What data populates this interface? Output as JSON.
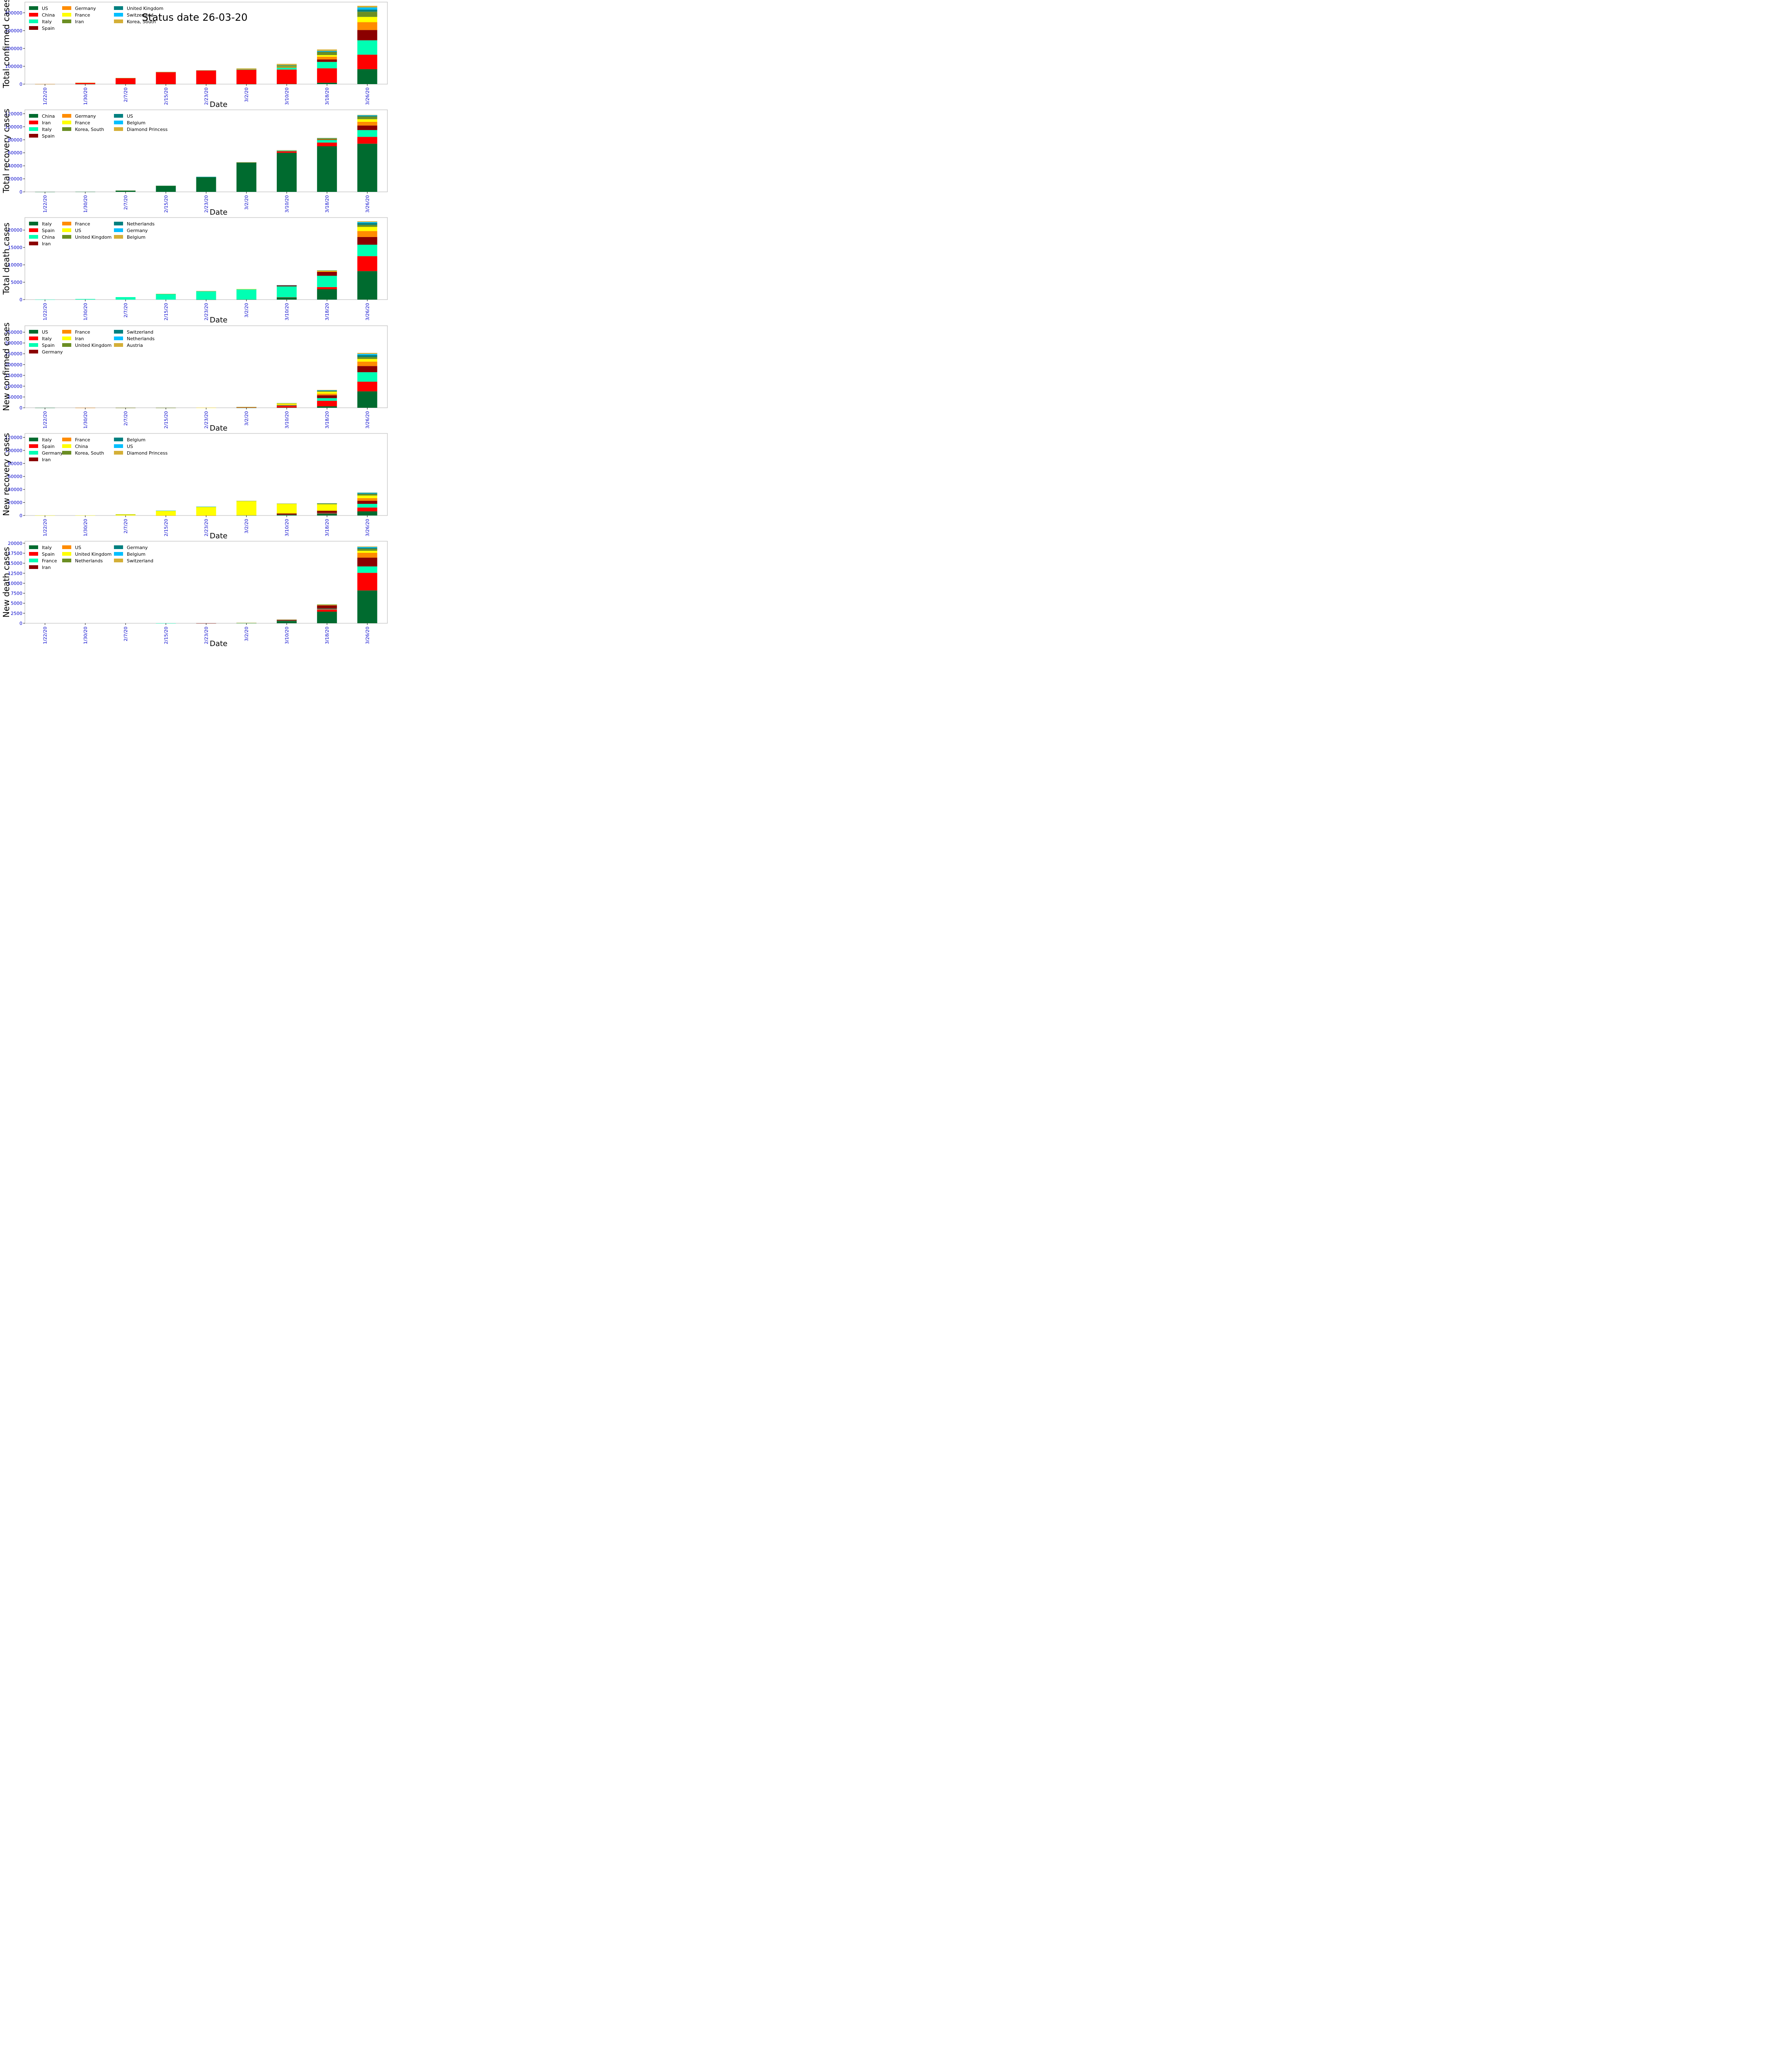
{
  "status_text": "Status date  26-03-20",
  "x_label": "Date",
  "colors": [
    "#006b2f",
    "#ff0000",
    "#00ffb3",
    "#8b0000",
    "#ff8c00",
    "#ffff00",
    "#6b8e23",
    "#008080",
    "#00bfff",
    "#d4af37"
  ],
  "chart_data": [
    {
      "type": "bar",
      "stacked": true,
      "ylabel": "Total confirmed cases",
      "ylim": [
        0,
        460000
      ],
      "yticks": [
        0,
        100000,
        200000,
        300000,
        400000
      ],
      "categories": [
        "1/22/20",
        "1/30/20",
        "2/7/20",
        "2/15/20",
        "2/23/20",
        "3/2/20",
        "3/10/20",
        "3/18/20",
        "3/26/20"
      ],
      "series": [
        {
          "name": "US",
          "values": [
            1,
            6,
            12,
            15,
            15,
            100,
            960,
            7800,
            83800
          ]
        },
        {
          "name": "China",
          "values": [
            550,
            8000,
            34000,
            68000,
            77000,
            80000,
            80800,
            81100,
            81300
          ]
        },
        {
          "name": "Italy",
          "values": [
            0,
            0,
            3,
            3,
            155,
            2000,
            10100,
            35700,
            80500
          ]
        },
        {
          "name": "Spain",
          "values": [
            0,
            0,
            1,
            2,
            2,
            120,
            1700,
            13900,
            57800
          ]
        },
        {
          "name": "Germany",
          "values": [
            0,
            4,
            13,
            16,
            16,
            159,
            1900,
            15300,
            43900
          ]
        },
        {
          "name": "France",
          "values": [
            0,
            5,
            6,
            12,
            12,
            190,
            1800,
            9000,
            29500
          ]
        },
        {
          "name": "Iran",
          "values": [
            0,
            0,
            0,
            0,
            43,
            1500,
            8000,
            17300,
            29400
          ]
        },
        {
          "name": "United Kingdom",
          "values": [
            0,
            0,
            3,
            9,
            9,
            40,
            380,
            2700,
            11800
          ]
        },
        {
          "name": "Switzerland",
          "values": [
            0,
            0,
            0,
            0,
            0,
            42,
            490,
            3100,
            11800
          ]
        },
        {
          "name": "Korea, South",
          "values": [
            1,
            4,
            24,
            28,
            600,
            4300,
            7500,
            8400,
            9200
          ]
        }
      ]
    },
    {
      "type": "bar",
      "stacked": true,
      "ylabel": "Total recovery cases",
      "ylim": [
        0,
        126000
      ],
      "yticks": [
        0,
        20000,
        40000,
        60000,
        80000,
        100000,
        120000
      ],
      "categories": [
        "1/22/20",
        "1/30/20",
        "2/7/20",
        "2/15/20",
        "2/23/20",
        "3/2/20",
        "3/10/20",
        "3/18/20",
        "3/26/20"
      ],
      "series": [
        {
          "name": "China",
          "values": [
            28,
            170,
            2000,
            9400,
            23000,
            45000,
            60000,
            70000,
            74000
          ]
        },
        {
          "name": "Iran",
          "values": [
            0,
            0,
            0,
            0,
            0,
            290,
            2400,
            5700,
            10500
          ]
        },
        {
          "name": "Italy",
          "values": [
            0,
            0,
            0,
            0,
            1,
            160,
            1000,
            4000,
            10400
          ]
        },
        {
          "name": "Spain",
          "values": [
            0,
            0,
            0,
            0,
            2,
            2,
            180,
            1100,
            7000
          ]
        },
        {
          "name": "Germany",
          "values": [
            0,
            0,
            0,
            1,
            14,
            16,
            25,
            110,
            5700
          ]
        },
        {
          "name": "France",
          "values": [
            0,
            0,
            0,
            2,
            4,
            12,
            12,
            12,
            4000
          ]
        },
        {
          "name": "Korea, South",
          "values": [
            0,
            0,
            1,
            10,
            18,
            30,
            250,
            1500,
            4100
          ]
        },
        {
          "name": "US",
          "values": [
            0,
            0,
            0,
            3,
            5,
            7,
            8,
            100,
            1100
          ]
        },
        {
          "name": "Belgium",
          "values": [
            0,
            0,
            0,
            0,
            1,
            1,
            1,
            31,
            860
          ]
        },
        {
          "name": "Diamond Princess",
          "values": [
            0,
            0,
            0,
            0,
            0,
            10,
            40,
            325,
            600
          ]
        }
      ]
    },
    {
      "type": "bar",
      "stacked": true,
      "ylabel": "Total death cases",
      "ylim": [
        0,
        23600
      ],
      "yticks": [
        0,
        5000,
        10000,
        15000,
        20000
      ],
      "categories": [
        "1/22/20",
        "1/30/20",
        "2/7/20",
        "2/15/20",
        "2/23/20",
        "3/2/20",
        "3/10/20",
        "3/18/20",
        "3/26/20"
      ],
      "series": [
        {
          "name": "Italy",
          "values": [
            0,
            0,
            0,
            0,
            3,
            52,
            630,
            2980,
            8200
          ]
        },
        {
          "name": "Spain",
          "values": [
            0,
            0,
            0,
            0,
            0,
            0,
            35,
            620,
            4300
          ]
        },
        {
          "name": "China",
          "values": [
            17,
            170,
            720,
            1660,
            2440,
            2910,
            3140,
            3250,
            3290
          ]
        },
        {
          "name": "Iran",
          "values": [
            0,
            0,
            0,
            0,
            8,
            66,
            290,
            1130,
            2230
          ]
        },
        {
          "name": "France",
          "values": [
            0,
            0,
            0,
            1,
            1,
            3,
            33,
            175,
            1700
          ]
        },
        {
          "name": "US",
          "values": [
            0,
            0,
            0,
            0,
            0,
            6,
            28,
            108,
            1200
          ]
        },
        {
          "name": "United Kingdom",
          "values": [
            0,
            0,
            0,
            0,
            0,
            0,
            6,
            71,
            580
          ]
        },
        {
          "name": "Netherlands",
          "values": [
            0,
            0,
            0,
            0,
            0,
            0,
            4,
            43,
            540
          ]
        },
        {
          "name": "Germany",
          "values": [
            0,
            0,
            0,
            0,
            0,
            0,
            2,
            44,
            270
          ]
        },
        {
          "name": "Belgium",
          "values": [
            0,
            0,
            0,
            0,
            0,
            0,
            0,
            14,
            220
          ]
        }
      ]
    },
    {
      "type": "bar",
      "stacked": true,
      "ylabel": "New confirmed cases",
      "ylim": [
        0,
        380000
      ],
      "yticks": [
        0,
        50000,
        100000,
        150000,
        200000,
        250000,
        300000,
        350000
      ],
      "categories": [
        "1/22/20",
        "1/30/20",
        "2/7/20",
        "2/15/20",
        "2/23/20",
        "3/2/20",
        "3/10/20",
        "3/18/20",
        "3/26/20"
      ],
      "series": [
        {
          "name": "US",
          "values": [
            1,
            5,
            6,
            3,
            0,
            85,
            860,
            6800,
            76000
          ]
        },
        {
          "name": "Italy",
          "values": [
            0,
            0,
            3,
            0,
            150,
            1850,
            8100,
            25600,
            44800
          ]
        },
        {
          "name": "Spain",
          "values": [
            0,
            0,
            1,
            1,
            0,
            118,
            1580,
            12200,
            43900
          ]
        },
        {
          "name": "Germany",
          "values": [
            0,
            4,
            9,
            3,
            0,
            143,
            1740,
            13400,
            28600
          ]
        },
        {
          "name": "France",
          "values": [
            0,
            5,
            1,
            6,
            0,
            178,
            1610,
            7200,
            20500
          ]
        },
        {
          "name": "Iran",
          "values": [
            0,
            0,
            0,
            0,
            43,
            1460,
            6500,
            9300,
            12100
          ]
        },
        {
          "name": "United Kingdom",
          "values": [
            0,
            0,
            3,
            6,
            0,
            31,
            340,
            2320,
            9100
          ]
        },
        {
          "name": "Switzerland",
          "values": [
            0,
            0,
            0,
            0,
            0,
            42,
            450,
            2600,
            8700
          ]
        },
        {
          "name": "Netherlands",
          "values": [
            0,
            0,
            0,
            0,
            0,
            18,
            360,
            1700,
            5500
          ]
        },
        {
          "name": "Austria",
          "values": [
            0,
            0,
            0,
            0,
            0,
            10,
            170,
            1700,
            4800
          ]
        }
      ]
    },
    {
      "type": "bar",
      "stacked": true,
      "ylabel": "New recovery cases",
      "ylim": [
        0,
        126000
      ],
      "yticks": [
        0,
        20000,
        40000,
        60000,
        80000,
        100000,
        120000
      ],
      "categories": [
        "1/22/20",
        "1/30/20",
        "2/7/20",
        "2/15/20",
        "2/23/20",
        "3/2/20",
        "3/10/20",
        "3/18/20",
        "3/26/20"
      ],
      "series": [
        {
          "name": "Italy",
          "values": [
            0,
            0,
            0,
            0,
            1,
            159,
            840,
            3000,
            6400
          ]
        },
        {
          "name": "Spain",
          "values": [
            0,
            0,
            0,
            0,
            2,
            0,
            178,
            920,
            5900
          ]
        },
        {
          "name": "Germany",
          "values": [
            0,
            0,
            0,
            1,
            13,
            2,
            9,
            85,
            5590
          ]
        },
        {
          "name": "Iran",
          "values": [
            0,
            0,
            0,
            0,
            0,
            290,
            2110,
            3300,
            4800
          ]
        },
        {
          "name": "France",
          "values": [
            0,
            0,
            0,
            2,
            2,
            8,
            0,
            0,
            3990
          ]
        },
        {
          "name": "China",
          "values": [
            28,
            142,
            1830,
            7400,
            13600,
            22000,
            15000,
            10000,
            4000
          ]
        },
        {
          "name": "Korea, South",
          "values": [
            0,
            0,
            1,
            9,
            8,
            12,
            220,
            1250,
            2600
          ]
        },
        {
          "name": "Belgium",
          "values": [
            0,
            0,
            0,
            0,
            1,
            0,
            0,
            30,
            830
          ]
        },
        {
          "name": "US",
          "values": [
            0,
            0,
            0,
            3,
            2,
            2,
            1,
            92,
            1000
          ]
        },
        {
          "name": "Diamond Princess",
          "values": [
            0,
            0,
            0,
            0,
            0,
            10,
            30,
            285,
            275
          ]
        }
      ]
    },
    {
      "type": "bar",
      "stacked": true,
      "ylabel": "New death cases",
      "ylim": [
        0,
        20500
      ],
      "yticks": [
        0,
        2500,
        5000,
        7500,
        10000,
        12500,
        15000,
        17500,
        20000
      ],
      "categories": [
        "1/22/20",
        "1/30/20",
        "2/7/20",
        "2/15/20",
        "2/23/20",
        "3/2/20",
        "3/10/20",
        "3/18/20",
        "3/26/20"
      ],
      "series": [
        {
          "name": "Italy",
          "values": [
            0,
            0,
            0,
            0,
            3,
            49,
            580,
            2900,
            8200
          ]
        },
        {
          "name": "Spain",
          "values": [
            0,
            0,
            0,
            0,
            0,
            0,
            35,
            585,
            4400
          ]
        },
        {
          "name": "France",
          "values": [
            0,
            0,
            0,
            1,
            0,
            2,
            30,
            142,
            1600
          ]
        },
        {
          "name": "Iran",
          "values": [
            0,
            0,
            0,
            0,
            8,
            58,
            226,
            840,
            2200
          ]
        },
        {
          "name": "US",
          "values": [
            0,
            0,
            0,
            0,
            0,
            6,
            22,
            80,
            1200
          ]
        },
        {
          "name": "United Kingdom",
          "values": [
            0,
            0,
            0,
            0,
            0,
            0,
            6,
            65,
            520
          ]
        },
        {
          "name": "Netherlands",
          "values": [
            0,
            0,
            0,
            0,
            0,
            0,
            4,
            39,
            500
          ]
        },
        {
          "name": "Germany",
          "values": [
            0,
            0,
            0,
            0,
            0,
            0,
            2,
            42,
            220
          ]
        },
        {
          "name": "Belgium",
          "values": [
            0,
            0,
            0,
            0,
            0,
            0,
            0,
            14,
            200
          ]
        },
        {
          "name": "Switzerland",
          "values": [
            0,
            0,
            0,
            0,
            0,
            0,
            3,
            30,
            150
          ]
        }
      ]
    }
  ]
}
